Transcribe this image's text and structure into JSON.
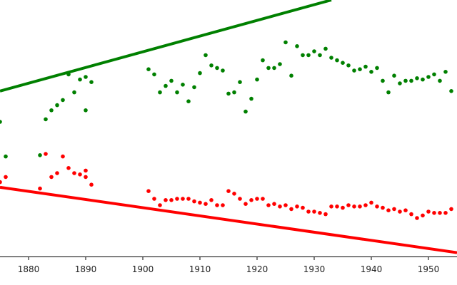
{
  "chart_data": {
    "type": "scatter",
    "title": "",
    "xlabel": "",
    "ylabel": "",
    "xlim": [
      1875,
      1955
    ],
    "ylim": [
      0,
      100
    ],
    "grid": false,
    "x_ticks": [
      1880,
      1890,
      1900,
      1910,
      1920,
      1930,
      1940,
      1950
    ],
    "x_tick_labels": [
      "1880",
      "1890",
      "1900",
      "1910",
      "1920",
      "1930",
      "1940",
      "1950"
    ],
    "series": [
      {
        "color": "#008000",
        "points": [
          [
            1875,
            52.5
          ],
          [
            1876,
            39.0
          ],
          [
            1882,
            39.5
          ],
          [
            1883,
            53.5
          ],
          [
            1884,
            57.0
          ],
          [
            1885,
            59.0
          ],
          [
            1886,
            61.0
          ],
          [
            1887,
            71.0
          ],
          [
            1888,
            64.0
          ],
          [
            1889,
            69.0
          ],
          [
            1890,
            57.0
          ],
          [
            1890,
            70.0
          ],
          [
            1891,
            68.0
          ],
          [
            1901,
            73.0
          ],
          [
            1902,
            71.0
          ],
          [
            1903,
            64.0
          ],
          [
            1904,
            66.5
          ],
          [
            1905,
            68.5
          ],
          [
            1906,
            64.0
          ],
          [
            1907,
            67.0
          ],
          [
            1908,
            60.5
          ],
          [
            1909,
            66.0
          ],
          [
            1910,
            71.5
          ],
          [
            1911,
            78.5
          ],
          [
            1912,
            74.5
          ],
          [
            1913,
            73.5
          ],
          [
            1914,
            72.5
          ],
          [
            1915,
            63.5
          ],
          [
            1916,
            64.0
          ],
          [
            1917,
            68.0
          ],
          [
            1918,
            56.5
          ],
          [
            1919,
            61.5
          ],
          [
            1920,
            69.0
          ],
          [
            1921,
            76.5
          ],
          [
            1922,
            73.5
          ],
          [
            1923,
            73.5
          ],
          [
            1924,
            75.0
          ],
          [
            1925,
            83.5
          ],
          [
            1926,
            70.5
          ],
          [
            1927,
            82.0
          ],
          [
            1928,
            78.5
          ],
          [
            1929,
            78.5
          ],
          [
            1930,
            80.0
          ],
          [
            1931,
            78.5
          ],
          [
            1932,
            81.0
          ],
          [
            1933,
            77.5
          ],
          [
            1934,
            76.5
          ],
          [
            1935,
            75.5
          ],
          [
            1936,
            74.5
          ],
          [
            1937,
            72.5
          ],
          [
            1938,
            73.0
          ],
          [
            1939,
            74.0
          ],
          [
            1940,
            72.0
          ],
          [
            1941,
            73.5
          ],
          [
            1942,
            68.5
          ],
          [
            1943,
            64.0
          ],
          [
            1944,
            70.5
          ],
          [
            1945,
            67.5
          ],
          [
            1946,
            68.5
          ],
          [
            1947,
            68.5
          ],
          [
            1948,
            69.5
          ],
          [
            1949,
            69.0
          ],
          [
            1950,
            70.0
          ],
          [
            1951,
            71.0
          ],
          [
            1952,
            68.5
          ],
          [
            1953,
            72.0
          ],
          [
            1954,
            64.5
          ]
        ]
      },
      {
        "color": "#ff0000",
        "points": [
          [
            1875,
            29.0
          ],
          [
            1876,
            31.0
          ],
          [
            1882,
            26.5
          ],
          [
            1883,
            40.0
          ],
          [
            1884,
            31.0
          ],
          [
            1885,
            32.5
          ],
          [
            1886,
            39.0
          ],
          [
            1887,
            34.5
          ],
          [
            1888,
            32.5
          ],
          [
            1889,
            32.0
          ],
          [
            1890,
            31.0
          ],
          [
            1890,
            33.5
          ],
          [
            1891,
            28.0
          ],
          [
            1901,
            25.5
          ],
          [
            1902,
            22.5
          ],
          [
            1903,
            20.0
          ],
          [
            1904,
            22.0
          ],
          [
            1905,
            22.0
          ],
          [
            1906,
            22.5
          ],
          [
            1907,
            22.5
          ],
          [
            1908,
            22.5
          ],
          [
            1909,
            21.5
          ],
          [
            1910,
            21.0
          ],
          [
            1911,
            20.5
          ],
          [
            1912,
            22.0
          ],
          [
            1913,
            20.0
          ],
          [
            1914,
            20.0
          ],
          [
            1915,
            25.5
          ],
          [
            1916,
            24.5
          ],
          [
            1917,
            22.5
          ],
          [
            1918,
            20.5
          ],
          [
            1919,
            22.0
          ],
          [
            1920,
            22.5
          ],
          [
            1921,
            22.5
          ],
          [
            1922,
            20.0
          ],
          [
            1923,
            20.5
          ],
          [
            1924,
            19.5
          ],
          [
            1925,
            20.0
          ],
          [
            1926,
            18.5
          ],
          [
            1927,
            19.5
          ],
          [
            1928,
            19.0
          ],
          [
            1929,
            17.5
          ],
          [
            1930,
            17.5
          ],
          [
            1931,
            17.0
          ],
          [
            1932,
            16.5
          ],
          [
            1933,
            19.5
          ],
          [
            1934,
            19.5
          ],
          [
            1935,
            19.0
          ],
          [
            1936,
            20.0
          ],
          [
            1937,
            19.5
          ],
          [
            1938,
            19.5
          ],
          [
            1939,
            20.0
          ],
          [
            1940,
            21.0
          ],
          [
            1941,
            19.5
          ],
          [
            1942,
            19.0
          ],
          [
            1943,
            18.0
          ],
          [
            1944,
            18.5
          ],
          [
            1945,
            17.5
          ],
          [
            1946,
            18.0
          ],
          [
            1947,
            16.5
          ],
          [
            1948,
            15.0
          ],
          [
            1949,
            16.0
          ],
          [
            1950,
            17.5
          ],
          [
            1951,
            17.0
          ],
          [
            1952,
            17.0
          ],
          [
            1953,
            17.0
          ],
          [
            1954,
            18.5
          ]
        ]
      }
    ],
    "lines": [
      {
        "color": "#008000",
        "from": [
          1875,
          64.5
        ],
        "to": [
          1933,
          100
        ]
      },
      {
        "color": "#ff0000",
        "from": [
          1875,
          27.0
        ],
        "to": [
          1955,
          1.5
        ]
      }
    ]
  }
}
